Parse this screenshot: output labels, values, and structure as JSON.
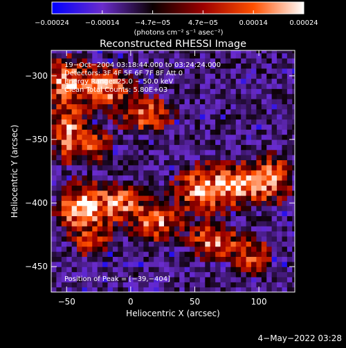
{
  "chart_data": {
    "type": "heatmap",
    "title": "Reconstructed RHESSI Image",
    "xlabel": "Heliocentric X (arcsec)",
    "ylabel": "Heliocentric Y (arcsec)",
    "xlim": [
      -62,
      128
    ],
    "ylim": [
      -470,
      -280
    ],
    "xticks": [
      -50,
      0,
      50,
      100
    ],
    "xtick_labels": [
      "−50",
      "0",
      "50",
      "100"
    ],
    "yticks": [
      -300,
      -350,
      -400,
      -450
    ],
    "ytick_labels": [
      "−300",
      "−350",
      "−400",
      "−450"
    ],
    "colorbar": {
      "range": [
        -0.00024,
        0.00024
      ],
      "tick_labels": [
        "−0.00024",
        "−0.00014",
        "−4.7e−05",
        "4.7e−05",
        "0.00014",
        "0.00024"
      ],
      "unit_label": "(photons cm⁻² s⁻¹ asec⁻²)",
      "colors": [
        "#0000ff",
        "#6a2ccc",
        "#0a0000",
        "#9c0000",
        "#ff5000",
        "#ffffff"
      ]
    },
    "annotations": [
      "19−Oct−2004 03:18:44.000 to 03:24:24.000",
      "Detectors: 3F 4F 5F 6F 7F 8F  Att 0",
      "Energy Range: 25.0 − 50.0 keV",
      "Clean     Total Counts: 5.80E+03",
      "Position of Peak = [−39,−404]"
    ],
    "peak": {
      "x": -39,
      "y": -404
    },
    "grid": false,
    "emission_sources": [
      {
        "x": -50,
        "y": -305,
        "sx": 10,
        "sy": 12,
        "a": 0.85
      },
      {
        "x": -18,
        "y": -308,
        "sx": 12,
        "sy": 10,
        "a": 0.9
      },
      {
        "x": 12,
        "y": -330,
        "sx": 14,
        "sy": 9,
        "a": 0.75
      },
      {
        "x": -48,
        "y": -345,
        "sx": 10,
        "sy": 14,
        "a": 0.8
      },
      {
        "x": -25,
        "y": -355,
        "sx": 8,
        "sy": 8,
        "a": 0.55
      },
      {
        "x": -39,
        "y": -404,
        "sx": 11,
        "sy": 12,
        "a": 1.0
      },
      {
        "x": -10,
        "y": -400,
        "sx": 13,
        "sy": 10,
        "a": 0.8
      },
      {
        "x": 20,
        "y": -415,
        "sx": 12,
        "sy": 10,
        "a": 0.75
      },
      {
        "x": 55,
        "y": -390,
        "sx": 14,
        "sy": 12,
        "a": 0.8
      },
      {
        "x": 85,
        "y": -385,
        "sx": 14,
        "sy": 10,
        "a": 0.85
      },
      {
        "x": 110,
        "y": -380,
        "sx": 10,
        "sy": 12,
        "a": 0.7
      },
      {
        "x": 65,
        "y": -430,
        "sx": 12,
        "sy": 9,
        "a": 0.75
      },
      {
        "x": 95,
        "y": -440,
        "sx": 10,
        "sy": 10,
        "a": 0.6
      },
      {
        "x": -30,
        "y": -430,
        "sx": 9,
        "sy": 8,
        "a": 0.5
      }
    ]
  },
  "footer": {
    "timestamp": "4−May−2022 03:28"
  }
}
